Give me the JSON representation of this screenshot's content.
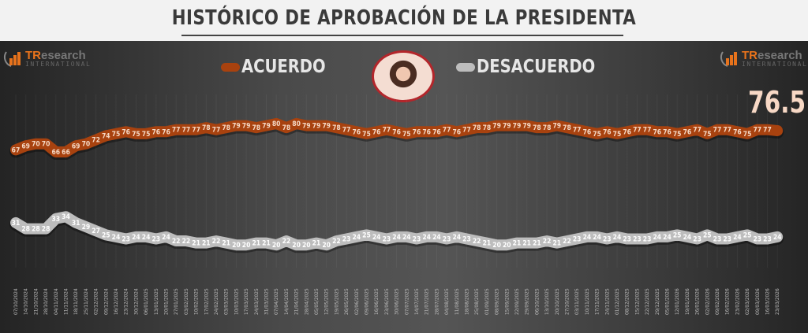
{
  "header": {
    "title": "HISTÓRICO DE APROBACIÓN DE LA PRESIDENTA"
  },
  "logo": {
    "brand_tr": "TR",
    "brand_rest": "esearch",
    "sub": "INTERNATIONAL"
  },
  "legend": [
    {
      "label": "ACUERDO",
      "color": "#a8420f"
    },
    {
      "label": "DESACUERDO",
      "color": "#bdbdbd"
    }
  ],
  "chart_data": {
    "type": "line",
    "title": "HISTÓRICO DE APROBACIÓN DE LA PRESIDENTA",
    "xlabel": "",
    "ylabel": "",
    "ylim": [
      15,
      85
    ],
    "grid": "vertical",
    "legend_position": "top",
    "last_value_label": "76.5",
    "x": [
      "07/10/2024",
      "14/10/2024",
      "21/10/2024",
      "28/10/2024",
      "04/11/2024",
      "11/11/2024",
      "18/11/2024",
      "25/11/2024",
      "02/12/2024",
      "09/12/2024",
      "16/12/2024",
      "23/12/2024",
      "30/12/2024",
      "06/01/2025",
      "13/01/2025",
      "20/01/2025",
      "27/01/2025",
      "03/02/2025",
      "10/02/2025",
      "17/02/2025",
      "24/02/2025",
      "03/03/2025",
      "10/03/2025",
      "17/03/2025",
      "24/03/2025",
      "31/03/2025",
      "07/04/2025",
      "14/04/2025",
      "21/04/2025",
      "28/04/2025",
      "05/05/2025",
      "12/05/2025",
      "19/05/2025",
      "26/05/2025",
      "02/06/2025",
      "09/06/2025",
      "16/06/2025",
      "23/06/2025",
      "30/06/2025",
      "07/07/2025",
      "14/07/2025",
      "21/07/2025",
      "28/07/2025",
      "04/08/2025",
      "11/08/2025",
      "18/08/2025",
      "25/08/2025",
      "01/09/2025",
      "08/09/2025",
      "15/09/2025",
      "22/09/2025",
      "29/09/2025",
      "06/10/2025",
      "13/10/2025",
      "20/10/2025",
      "27/10/2025",
      "03/11/2025",
      "10/11/2025",
      "17/11/2025",
      "24/11/2025",
      "01/12/2025",
      "08/12/2025",
      "15/12/2025",
      "22/12/2025",
      "29/12/2025",
      "05/01/2026",
      "12/01/2026",
      "19/01/2026",
      "26/01/2026",
      "02/02/2026",
      "09/02/2026",
      "16/02/2026",
      "23/02/2026",
      "02/03/2026",
      "09/03/2026",
      "16/03/2026",
      "23/03/2026"
    ],
    "series": [
      {
        "name": "ACUERDO",
        "color": "#a8420f",
        "values": [
          67,
          69,
          70,
          70,
          66,
          66,
          69,
          70,
          72,
          74,
          75,
          76,
          75,
          75,
          76,
          76,
          77,
          77,
          77,
          78,
          77,
          78,
          79,
          79,
          78,
          79,
          80,
          78,
          80,
          79,
          79,
          79,
          78,
          77,
          76,
          75,
          76,
          77,
          76,
          75,
          76,
          76,
          76,
          77,
          76,
          77,
          78,
          78,
          79,
          79,
          79,
          79,
          78,
          78,
          79,
          78,
          77,
          76,
          75,
          76,
          75,
          76,
          77,
          77,
          76,
          76,
          75,
          76,
          77,
          75,
          77,
          77,
          76,
          75,
          77,
          77,
          76.5
        ]
      },
      {
        "name": "DESACUERDO",
        "color": "#bdbdbd",
        "values": [
          31,
          28,
          28,
          28,
          33,
          34,
          31,
          29,
          27,
          25,
          24,
          23,
          24,
          24,
          23,
          24,
          22,
          22,
          21,
          21,
          22,
          21,
          20,
          20,
          21,
          21,
          20,
          22,
          20,
          20,
          21,
          20,
          22,
          23,
          24,
          25,
          24,
          23,
          24,
          24,
          23,
          24,
          24,
          23,
          24,
          23,
          22,
          21,
          20,
          20,
          21,
          21,
          21,
          22,
          21,
          22,
          23,
          24,
          24,
          23,
          24,
          23,
          23,
          23,
          24,
          24,
          25,
          24,
          23,
          25,
          23,
          23,
          24,
          25,
          23,
          23,
          24
        ]
      }
    ]
  }
}
